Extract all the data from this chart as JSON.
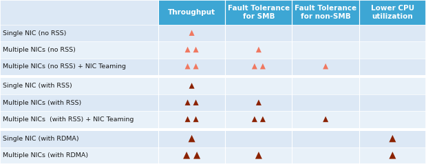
{
  "rows": [
    "Single NIC (no RSS)",
    "Multiple NICs (no RSS)",
    "Multiple NICs (no RSS) + NIC Teaming",
    "Single NIC (with RSS)",
    "Multiple NICs (with RSS)",
    "Multiple NICs  (with RSS) + NIC Teaming",
    "Single NIC (with RDMA)",
    "Multiple NICs (with RDMA)"
  ],
  "col_headers": [
    "Throughput",
    "Fault Tolerance\nfor SMB",
    "Fault Tolerance\nfor non-SMB",
    "Lower CPU\nutilization"
  ],
  "col_header_bg": "#3da6d4",
  "col_header_fg": "#ffffff",
  "row_label_col": "#1a1a1a",
  "row_bg_even": "#dce8f5",
  "row_bg_odd": "#e8f1f9",
  "separator_color": "#ffffff",
  "grid_line_color": "#ffffff",
  "separator_rows": [
    3,
    6
  ],
  "tri_orange": "#f07860",
  "tri_dark": "#8b2200",
  "cells": [
    {
      "row": 0,
      "col": 0,
      "count": 1,
      "color": "orange"
    },
    {
      "row": 1,
      "col": 0,
      "count": 2,
      "color": "orange"
    },
    {
      "row": 1,
      "col": 1,
      "count": 1,
      "color": "orange"
    },
    {
      "row": 2,
      "col": 0,
      "count": 2,
      "color": "orange"
    },
    {
      "row": 2,
      "col": 1,
      "count": 2,
      "color": "orange"
    },
    {
      "row": 2,
      "col": 2,
      "count": 1,
      "color": "orange"
    },
    {
      "row": 3,
      "col": 0,
      "count": 1,
      "color": "dark"
    },
    {
      "row": 4,
      "col": 0,
      "count": 2,
      "color": "dark"
    },
    {
      "row": 4,
      "col": 1,
      "count": 1,
      "color": "dark"
    },
    {
      "row": 5,
      "col": 0,
      "count": 2,
      "color": "dark"
    },
    {
      "row": 5,
      "col": 1,
      "count": 2,
      "color": "dark"
    },
    {
      "row": 5,
      "col": 2,
      "count": 1,
      "color": "dark"
    },
    {
      "row": 6,
      "col": 0,
      "count": 1,
      "color": "dark"
    },
    {
      "row": 6,
      "col": 3,
      "count": 1,
      "color": "dark"
    },
    {
      "row": 7,
      "col": 0,
      "count": 2,
      "color": "dark"
    },
    {
      "row": 7,
      "col": 1,
      "count": 1,
      "color": "dark"
    },
    {
      "row": 7,
      "col": 3,
      "count": 1,
      "color": "dark"
    }
  ],
  "fig_width": 6.19,
  "fig_height": 2.38,
  "dpi": 100
}
